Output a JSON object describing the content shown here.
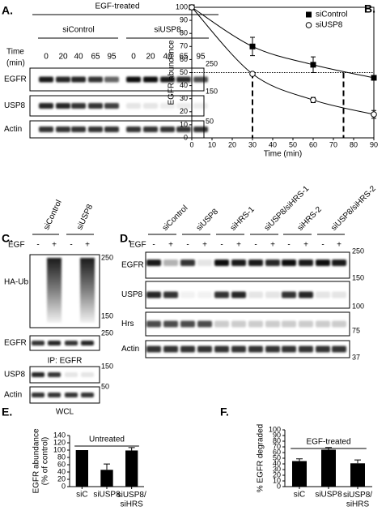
{
  "panel_a": {
    "label": "A.",
    "header": "EGF-treated",
    "groups": [
      "siControl",
      "siUSP8"
    ],
    "time_label": [
      "Time",
      "(min)"
    ],
    "times": [
      0,
      20,
      40,
      65,
      95,
      0,
      20,
      40,
      65,
      95
    ],
    "rows": [
      "EGFR",
      "USP8",
      "Actin"
    ],
    "markers": [
      250,
      150,
      50
    ]
  },
  "panel_c": {
    "label": "C.",
    "groups": [
      "siControl",
      "siUSP8"
    ],
    "egf_label": "EGF",
    "egf": [
      "-",
      "+",
      "-",
      "+"
    ],
    "rows": [
      "HA-Ub",
      "EGFR",
      "USP8",
      "Actin"
    ],
    "markers": [
      250,
      150,
      250,
      150,
      50
    ],
    "ip_label": "IP: EGFR",
    "wcl_label": "WCL"
  },
  "panel_d": {
    "label": "D.",
    "groups": [
      "siControl",
      "siUSP8",
      "siHRS-1",
      "siUSP8/siHRS-1",
      "siHRS-2",
      "siUSP8/siHRS-2"
    ],
    "egf_label": "EGF",
    "egf": [
      "-",
      "+",
      "-",
      "+",
      "-",
      "+",
      "-",
      "+",
      "-",
      "+",
      "-",
      "+"
    ],
    "rows": [
      "EGFR",
      "USP8",
      "Hrs",
      "Actin"
    ],
    "markers": [
      250,
      150,
      100,
      75,
      37
    ]
  },
  "chart_data": [
    {
      "type": "line",
      "panel_label": "B.",
      "xlabel": "Time (min)",
      "ylabel": "EGFR abundance",
      "x": [
        0,
        30,
        60,
        90
      ],
      "xlim": [
        0,
        90
      ],
      "xticks": [
        0,
        10,
        20,
        30,
        40,
        50,
        60,
        70,
        80,
        90
      ],
      "ylim": [
        0,
        100
      ],
      "yticks": [
        0,
        10,
        20,
        30,
        40,
        50,
        60,
        70,
        80,
        90,
        100
      ],
      "legend": "upper right",
      "series": [
        {
          "name": "siControl",
          "color": "#000000",
          "marker": "square",
          "values": [
            100,
            70,
            56,
            46
          ],
          "errors": [
            0,
            7,
            6,
            0
          ]
        },
        {
          "name": "siUSP8",
          "color": "#000000",
          "marker": "open-circle",
          "values": [
            100,
            49,
            29,
            18
          ],
          "errors": [
            0,
            1,
            2,
            3
          ]
        }
      ],
      "hline": 50,
      "vlines": [
        30,
        75
      ]
    },
    {
      "type": "bar",
      "panel_label": "E.",
      "ylabel": [
        "EGFR abundance",
        "(% of control)"
      ],
      "annotation": "Untreated",
      "categories": [
        "siC",
        "siUSP8",
        "siUSP8/\nsiHRS"
      ],
      "values": [
        100,
        46,
        99
      ],
      "errors": [
        0,
        16,
        8
      ],
      "color": "#000000",
      "ylim": [
        0,
        140
      ],
      "yticks": [
        0,
        20,
        40,
        60,
        80,
        100,
        120,
        140
      ]
    },
    {
      "type": "bar",
      "panel_label": "F.",
      "ylabel": [
        "% EGFR degraded"
      ],
      "annotation": "EGF-treated",
      "categories": [
        "siC",
        "siUSP8",
        "siUSP8/\nsiHRS"
      ],
      "values": [
        45,
        65,
        41
      ],
      "errors": [
        4,
        4,
        6
      ],
      "color": "#000000",
      "ylim": [
        0,
        100
      ],
      "yticks": [
        0,
        10,
        20,
        30,
        40,
        50,
        60,
        70,
        80,
        90,
        100
      ]
    }
  ]
}
